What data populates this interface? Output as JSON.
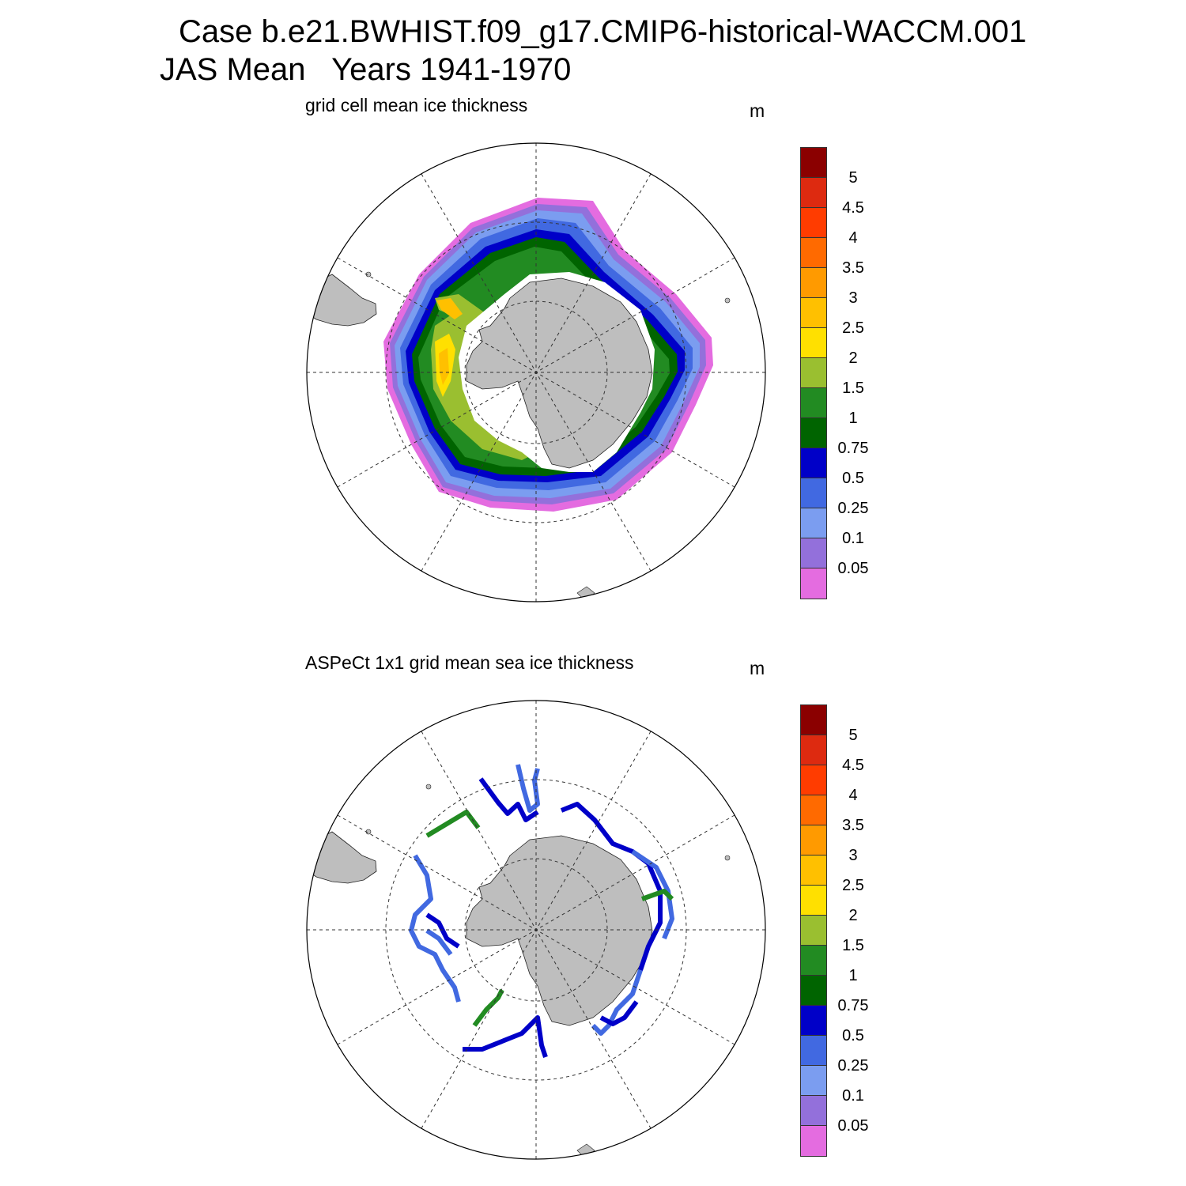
{
  "header": {
    "case_line": "Case b.e21.BWHIST.f09_g17.CMIP6-historical-WACCM.001",
    "period_line": "JAS Mean   Years 1941-1970"
  },
  "panels": [
    {
      "title": "grid cell mean ice thickness",
      "unit": "m"
    },
    {
      "title": "ASPeCt 1x1 grid mean sea ice thickness",
      "unit": "m"
    }
  ],
  "colorbar": {
    "labels": [
      "5",
      "4.5",
      "4",
      "3.5",
      "3",
      "2.5",
      "2",
      "1.5",
      "1",
      "0.75",
      "0.5",
      "0.25",
      "0.1",
      "0.05"
    ],
    "colors": [
      "#8b0000",
      "#dd2a10",
      "#ff3c00",
      "#ff6a00",
      "#ff9a00",
      "#ffc000",
      "#ffe000",
      "#9abf30",
      "#228b22",
      "#006400",
      "#0000c8",
      "#4169e1",
      "#7b9df0",
      "#9370db",
      "#e46ce0"
    ]
  },
  "colors": {
    "land": "#bebebe",
    "grid": "#333333"
  }
}
